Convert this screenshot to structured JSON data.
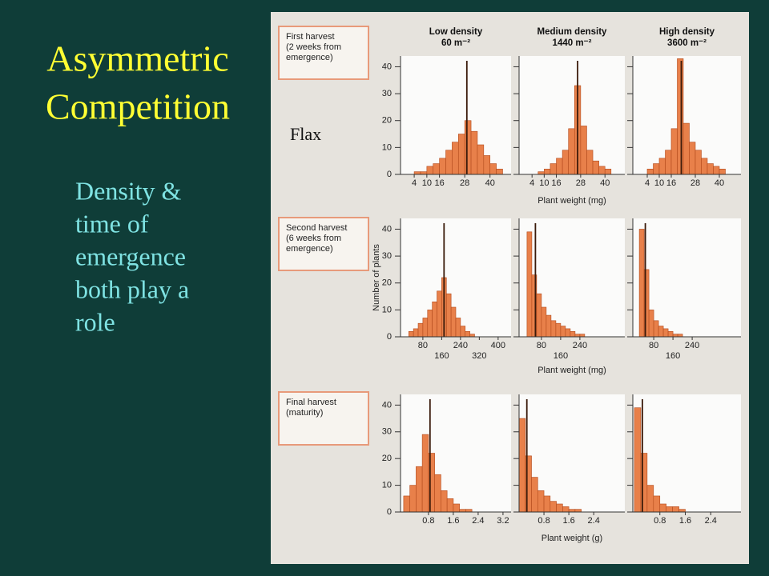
{
  "slide": {
    "title": [
      "Asymmetric",
      "Competition"
    ],
    "body": [
      "Density &",
      "time of",
      "emergence",
      "both play a",
      "role"
    ]
  },
  "figure": {
    "label": "Flax",
    "columns": [
      {
        "title": "Low density",
        "density": "60 m⁻²"
      },
      {
        "title": "Medium density",
        "density": "1440 m⁻²"
      },
      {
        "title": "High density",
        "density": "3600 m⁻²"
      }
    ],
    "rows": [
      [
        "First harvest",
        "(2 weeks from",
        "emergence)"
      ],
      [
        "Second harvest",
        "(6 weeks from",
        "emergence)"
      ],
      [
        "Final harvest",
        "(maturity)"
      ]
    ]
  },
  "chart_data": [
    {
      "type": "histogram",
      "color": "#e8804a",
      "bins": [
        1,
        4,
        7,
        10,
        13,
        16,
        19,
        22,
        25,
        28,
        31,
        34,
        37,
        40,
        43,
        46
      ],
      "values": [
        0,
        1,
        1,
        3,
        4,
        6,
        9,
        12,
        15,
        20,
        16,
        11,
        7,
        4,
        2
      ],
      "median": 29,
      "xlim": [
        -2.5,
        50
      ],
      "ylim": [
        0,
        44
      ],
      "xticks": [
        4,
        10,
        16,
        28,
        40
      ],
      "yticks": [
        0,
        10,
        20,
        30,
        40
      ]
    },
    {
      "type": "histogram",
      "color": "#e8804a",
      "bins": [
        1,
        4,
        7,
        10,
        13,
        16,
        19,
        22,
        25,
        28,
        31,
        34,
        37,
        40,
        43,
        46
      ],
      "values": [
        0,
        0,
        1,
        2,
        4,
        6,
        9,
        17,
        33,
        18,
        9,
        5,
        3,
        2,
        0
      ],
      "median": 26.5,
      "xlim": [
        -2.4,
        49.8
      ],
      "ylim": [
        0,
        44
      ],
      "xticks": [
        4,
        10,
        16,
        28,
        40
      ],
      "yticks": [
        0,
        10,
        20,
        30,
        40
      ],
      "xlabel": "Plant weight (mg)"
    },
    {
      "type": "histogram",
      "color": "#e8804a",
      "bins": [
        1,
        4,
        7,
        10,
        13,
        16,
        19,
        22,
        25,
        28,
        31,
        34,
        37,
        40,
        43,
        46
      ],
      "values": [
        0,
        2,
        4,
        6,
        9,
        17,
        43,
        19,
        12,
        9,
        6,
        4,
        3,
        2,
        0
      ],
      "median": 21,
      "xlim": [
        -3.2,
        50.8
      ],
      "ylim": [
        0,
        44
      ],
      "xticks": [
        4,
        10,
        16,
        28,
        40
      ],
      "yticks": [
        0,
        10,
        20,
        30,
        40
      ]
    },
    {
      "type": "histogram",
      "color": "#e8804a",
      "bins": [
        20,
        40,
        60,
        80,
        100,
        120,
        140,
        160,
        180,
        200,
        220,
        240,
        260,
        280,
        300,
        320,
        340,
        360,
        380,
        400,
        420
      ],
      "values": [
        2,
        3,
        5,
        7,
        10,
        13,
        17,
        22,
        16,
        11,
        7,
        4,
        2,
        1,
        0,
        0,
        0,
        0,
        0,
        0
      ],
      "median": 170,
      "xlim": [
        -15,
        455
      ],
      "ylim": [
        0,
        44
      ],
      "xticks": [
        80,
        160,
        240,
        320,
        400
      ],
      "yticks": [
        0,
        10,
        20,
        30,
        40
      ],
      "ylabel": "Number of plants",
      "stagger_xticks": true
    },
    {
      "type": "histogram",
      "color": "#e8804a",
      "bins": [
        20,
        40,
        60,
        80,
        100,
        120,
        140,
        160,
        180,
        200,
        220,
        240,
        260,
        280,
        300,
        320,
        340,
        360,
        380,
        400,
        420
      ],
      "values": [
        39,
        23,
        16,
        11,
        8,
        6,
        5,
        4,
        3,
        2,
        1,
        1,
        0,
        0,
        0,
        0,
        0,
        0,
        0,
        0
      ],
      "median": 55,
      "xlim": [
        -13,
        427
      ],
      "ylim": [
        0,
        44
      ],
      "xticks": [
        80,
        160,
        240
      ],
      "yticks": [
        0,
        10,
        20,
        30,
        40
      ],
      "xlabel": "Plant weight (mg)",
      "stagger_xticks": true
    },
    {
      "type": "histogram",
      "color": "#e8804a",
      "bins": [
        20,
        40,
        60,
        80,
        100,
        120,
        140,
        160,
        180,
        200,
        220,
        240,
        260,
        280,
        300,
        320,
        340,
        360,
        380,
        400,
        420
      ],
      "values": [
        40,
        25,
        10,
        6,
        4,
        3,
        2,
        1,
        1,
        0,
        0,
        0,
        0,
        0,
        0,
        0,
        0,
        0,
        0,
        0
      ],
      "median": 45,
      "xlim": [
        -7,
        443
      ],
      "ylim": [
        0,
        44
      ],
      "xticks": [
        80,
        160,
        240
      ],
      "yticks": [
        0,
        10,
        20,
        30,
        40
      ],
      "stagger_xticks": true
    },
    {
      "type": "histogram",
      "color": "#e8804a",
      "bins": [
        0,
        0.2,
        0.4,
        0.6,
        0.8,
        1,
        1.2,
        1.4,
        1.6,
        1.8,
        2,
        2.2,
        2.4,
        2.6,
        2.8,
        3,
        3.2,
        3.4
      ],
      "values": [
        6,
        10,
        17,
        29,
        22,
        14,
        8,
        5,
        3,
        1,
        1,
        0,
        0,
        0,
        0,
        0,
        0
      ],
      "median": 0.85,
      "xlim": [
        -0.1,
        3.46
      ],
      "ylim": [
        0,
        44
      ],
      "xticks": [
        0.8,
        1.6,
        2.4,
        3.2
      ],
      "yticks": [
        0,
        10,
        20,
        30,
        40
      ]
    },
    {
      "type": "histogram",
      "color": "#e8804a",
      "bins": [
        0,
        0.2,
        0.4,
        0.6,
        0.8,
        1,
        1.2,
        1.4,
        1.6,
        1.8,
        2,
        2.2,
        2.4,
        2.6,
        2.8,
        3,
        3.2,
        3.4
      ],
      "values": [
        35,
        21,
        13,
        8,
        6,
        4,
        3,
        2,
        1,
        1,
        0,
        0,
        0,
        0,
        0,
        0,
        0
      ],
      "median": 0.25,
      "xlim": [
        0,
        3.4
      ],
      "ylim": [
        0,
        44
      ],
      "xticks": [
        0.8,
        1.6,
        2.4
      ],
      "yticks": [
        0,
        10,
        20,
        30,
        40
      ],
      "xlabel": "Plant weight (g)"
    },
    {
      "type": "histogram",
      "color": "#e8804a",
      "bins": [
        0,
        0.2,
        0.4,
        0.6,
        0.8,
        1,
        1.2,
        1.4,
        1.6,
        1.8,
        2,
        2.2,
        2.4,
        2.6,
        2.8,
        3,
        3.2,
        3.4
      ],
      "values": [
        39,
        22,
        10,
        6,
        3,
        2,
        2,
        1,
        0,
        0,
        0,
        0,
        0,
        0,
        0,
        0,
        0
      ],
      "median": 0.25,
      "xlim": [
        -0.05,
        3.35
      ],
      "ylim": [
        0,
        44
      ],
      "xticks": [
        0.8,
        1.6,
        2.4
      ],
      "yticks": [
        0,
        10,
        20,
        30,
        40
      ]
    }
  ]
}
